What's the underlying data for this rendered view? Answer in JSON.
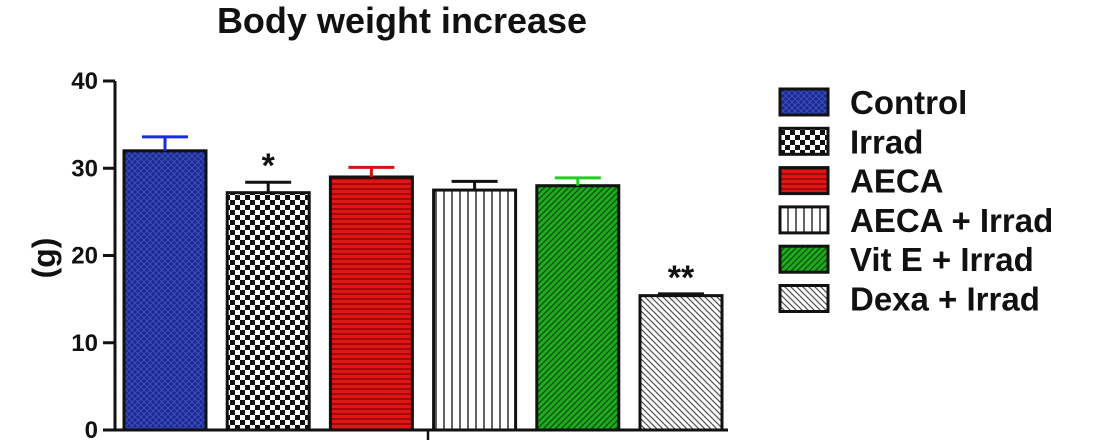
{
  "chart_data": {
    "type": "bar",
    "title": "Body weight increase",
    "ylabel": "(g)",
    "xlabel": "",
    "ylim": [
      0,
      40
    ],
    "yticks": [
      0,
      10,
      20,
      30,
      40
    ],
    "legend_position": "right",
    "grid": false,
    "bars": [
      {
        "label": "Control",
        "value": 32.0,
        "error": 1.6,
        "fill": "#1c2a8c",
        "pattern": "crosshatch",
        "error_color": "#1a2ce0",
        "annotation": ""
      },
      {
        "label": "Irrad",
        "value": 27.2,
        "error": 1.2,
        "fill": "#ffffff",
        "pattern": "checker",
        "error_color": "#111111",
        "annotation": "*"
      },
      {
        "label": "AECA",
        "value": 29.0,
        "error": 1.1,
        "fill": "#e01616",
        "pattern": "hlines",
        "error_color": "#d81010",
        "annotation": ""
      },
      {
        "label": "AECA + Irrad",
        "value": 27.5,
        "error": 1.0,
        "fill": "#ffffff",
        "pattern": "vlines",
        "error_color": "#111111",
        "annotation": ""
      },
      {
        "label": "Vit E + Irrad",
        "value": 28.0,
        "error": 0.9,
        "fill": "#1faa1f",
        "pattern": "diag",
        "error_color": "#22cc22",
        "annotation": ""
      },
      {
        "label": "Dexa + Irrad",
        "value": 15.4,
        "error": 0.2,
        "fill": "#ffffff",
        "pattern": "diag-grey",
        "error_color": "#111111",
        "annotation": "**"
      }
    ]
  }
}
